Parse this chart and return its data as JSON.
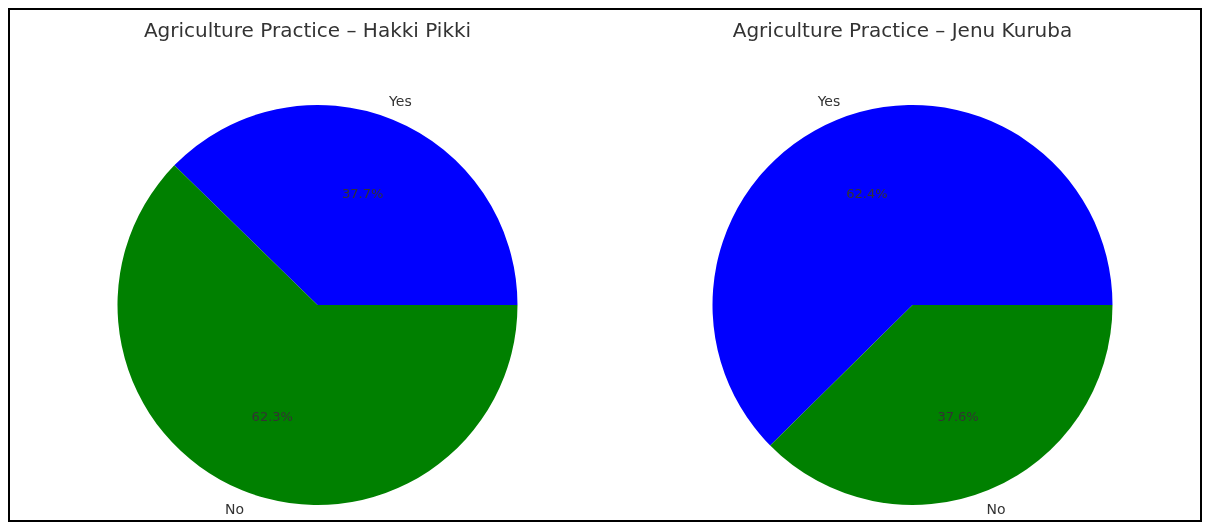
{
  "chart_data": [
    {
      "type": "pie",
      "title": "Agriculture Practice – Hakki Pikki",
      "categories": [
        "Yes",
        "No"
      ],
      "values": [
        37.7,
        62.3
      ],
      "colors": [
        "#0000ff",
        "#008000"
      ],
      "value_labels": [
        "37.7%",
        "62.3%"
      ]
    },
    {
      "type": "pie",
      "title": "Agriculture Practice – Jenu Kuruba",
      "categories": [
        "Yes",
        "No"
      ],
      "values": [
        62.4,
        37.6
      ],
      "colors": [
        "#0000ff",
        "#008000"
      ],
      "value_labels": [
        "62.4%",
        "37.6%"
      ]
    }
  ]
}
